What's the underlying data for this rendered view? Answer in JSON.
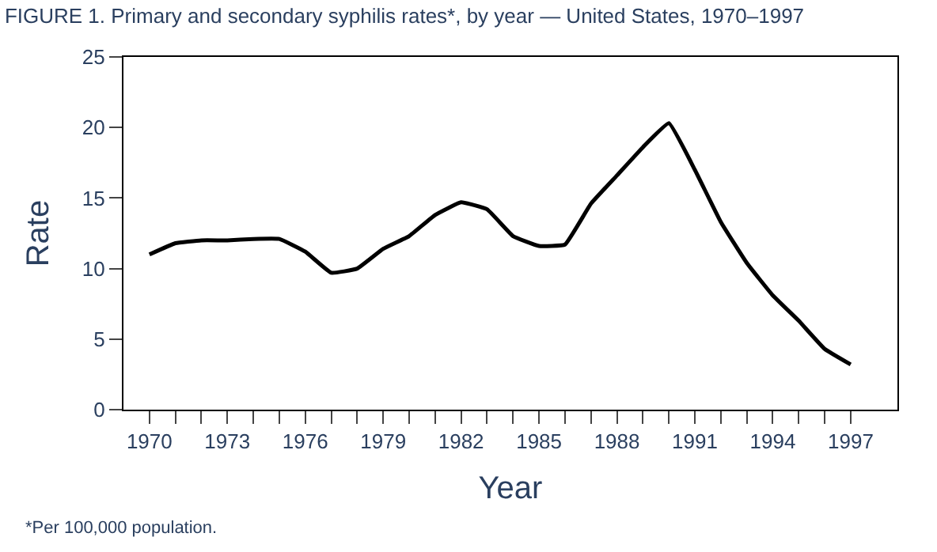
{
  "chart_data": {
    "type": "line",
    "title": "FIGURE 1. Primary and secondary syphilis rates*, by year — United States, 1970–1997",
    "xlabel": "Year",
    "ylabel": "Rate",
    "x": [
      1970,
      1971,
      1972,
      1973,
      1974,
      1975,
      1976,
      1977,
      1978,
      1979,
      1980,
      1981,
      1982,
      1983,
      1984,
      1985,
      1986,
      1987,
      1988,
      1989,
      1990,
      1991,
      1992,
      1993,
      1994,
      1995,
      1996,
      1997
    ],
    "series": [
      {
        "color": "#000000",
        "values": [
          11.0,
          11.8,
          12.0,
          12.0,
          12.1,
          12.1,
          11.2,
          9.7,
          10.0,
          11.4,
          12.3,
          13.8,
          14.7,
          14.2,
          12.3,
          11.6,
          11.7,
          14.6,
          16.6,
          18.6,
          20.3,
          17.0,
          13.3,
          10.4,
          8.1,
          6.3,
          4.3,
          3.2
        ]
      }
    ],
    "xlim": [
      1969,
      1998.8
    ],
    "ylim": [
      0,
      25
    ],
    "xticks": [
      1970,
      {
        "value": 1971,
        "label": null
      },
      {
        "value": 1972,
        "label": null
      },
      1973,
      {
        "value": 1974,
        "label": null
      },
      {
        "value": 1975,
        "label": null
      },
      1976,
      {
        "value": 1977,
        "label": null
      },
      {
        "value": 1978,
        "label": null
      },
      1979,
      {
        "value": 1980,
        "label": null
      },
      {
        "value": 1981,
        "label": null
      },
      1982,
      {
        "value": 1983,
        "label": null
      },
      {
        "value": 1984,
        "label": null
      },
      1985,
      {
        "value": 1986,
        "label": null
      },
      {
        "value": 1987,
        "label": null
      },
      1988,
      {
        "value": 1989,
        "label": null
      },
      {
        "value": 1990,
        "label": null
      },
      1991,
      {
        "value": 1992,
        "label": null
      },
      {
        "value": 1993,
        "label": null
      },
      1994,
      {
        "value": 1995,
        "label": null
      },
      {
        "value": 1996,
        "label": null
      },
      1997
    ],
    "yticks": [
      0,
      5,
      10,
      15,
      20,
      25
    ],
    "grid": false,
    "line_style": "solid",
    "annotations": [
      "*Per 100,000 population."
    ]
  }
}
